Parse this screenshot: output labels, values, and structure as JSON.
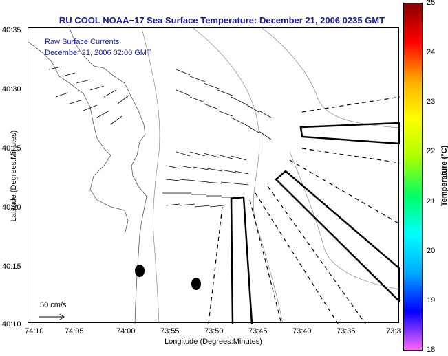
{
  "title": "RU COOL  NOAA−17  Sea Surface Temperature:  December 21, 2006 0235 GMT",
  "legend": {
    "line1": "Raw Surface Currents",
    "line2": "December 21, 2006 02:00 GMT"
  },
  "axes": {
    "xlabel": "Longitude (Degrees:Minutes)",
    "ylabel": "Latitude (Degrees:Minutes)",
    "x_ticks": [
      "74:10",
      "74:05",
      "74:00",
      "73:55",
      "73:50",
      "73:45",
      "73:40",
      "73:35",
      "73:3"
    ],
    "y_ticks": [
      "40:35",
      "40:30",
      "40:25",
      "40:20",
      "40:15",
      "40:10"
    ]
  },
  "scale": {
    "label": "50 cm/s"
  },
  "colorbar": {
    "label": "Temperature (°C)",
    "ticks": [
      "25",
      "24",
      "23",
      "22",
      "21",
      "20",
      "19",
      "18"
    ],
    "range": [
      18,
      25
    ],
    "colors": [
      "#ff66ff",
      "#0000ff",
      "#00aaff",
      "#00ffff",
      "#00ff66",
      "#aaff00",
      "#ffff00",
      "#ffaa00",
      "#ff0000",
      "#880000"
    ]
  }
}
